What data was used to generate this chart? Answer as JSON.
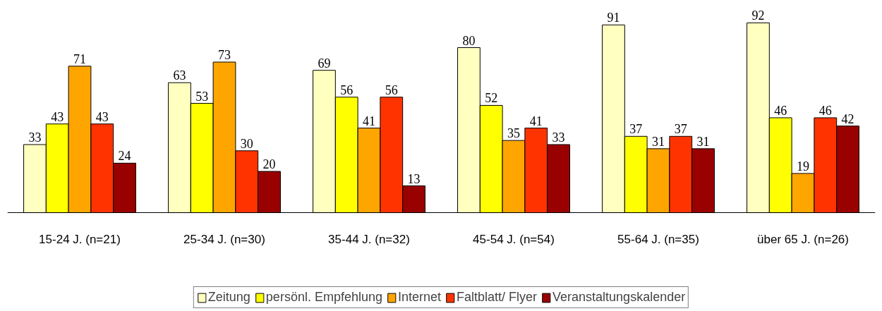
{
  "chart_data": {
    "type": "bar",
    "categories": [
      "15-24 J. (n=21)",
      "25-34 J. (n=30)",
      "35-44 J. (n=32)",
      "45-54 J. (n=54)",
      "55-64 J. (n=35)",
      "über 65 J. (n=26)"
    ],
    "series": [
      {
        "name": "Zeitung",
        "color": "#ffffc0",
        "values": [
          33,
          63,
          69,
          80,
          91,
          92
        ]
      },
      {
        "name": "persönl. Empfehlung",
        "color": "#ffff00",
        "values": [
          43,
          53,
          56,
          52,
          37,
          46
        ]
      },
      {
        "name": "Internet",
        "color": "#ffa500",
        "values": [
          71,
          73,
          41,
          35,
          31,
          19
        ]
      },
      {
        "name": "Faltblatt/ Flyer",
        "color": "#ff3300",
        "values": [
          43,
          30,
          56,
          41,
          37,
          46
        ]
      },
      {
        "name": "Veranstaltungskalender",
        "color": "#990000",
        "values": [
          24,
          20,
          13,
          33,
          31,
          42
        ]
      }
    ],
    "data_labels": true,
    "grid": false,
    "legend": "bottom"
  }
}
